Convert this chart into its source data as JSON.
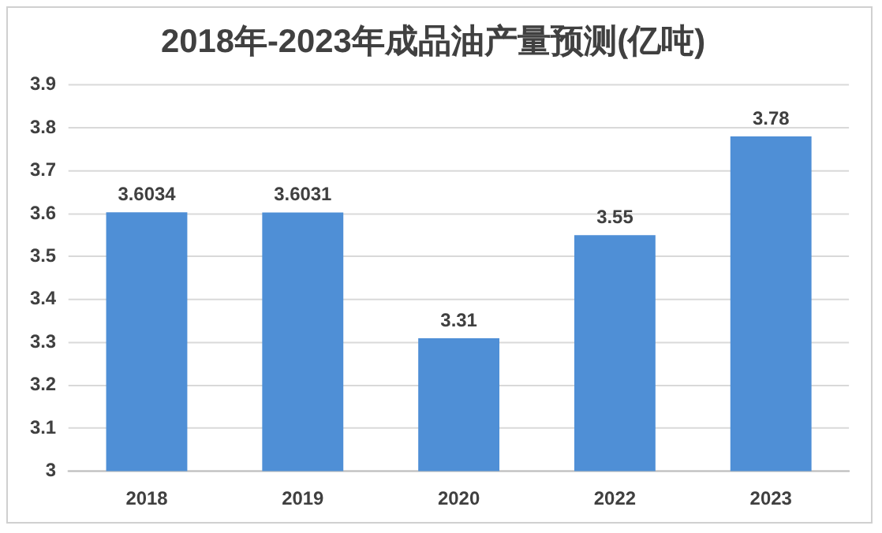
{
  "chart_data": {
    "type": "bar",
    "title": "2018年-2023年成品油产量预测(亿吨)",
    "categories": [
      "2018",
      "2019",
      "2020",
      "2022",
      "2023"
    ],
    "values": [
      3.6034,
      3.6031,
      3.31,
      3.55,
      3.78
    ],
    "color": "#4f8fd6",
    "ylim": [
      3,
      3.9
    ],
    "yticks": [
      3,
      3.1,
      3.2,
      3.3,
      3.4,
      3.5,
      3.6,
      3.7,
      3.8,
      3.9
    ],
    "grid": "y",
    "data_labels": true
  }
}
